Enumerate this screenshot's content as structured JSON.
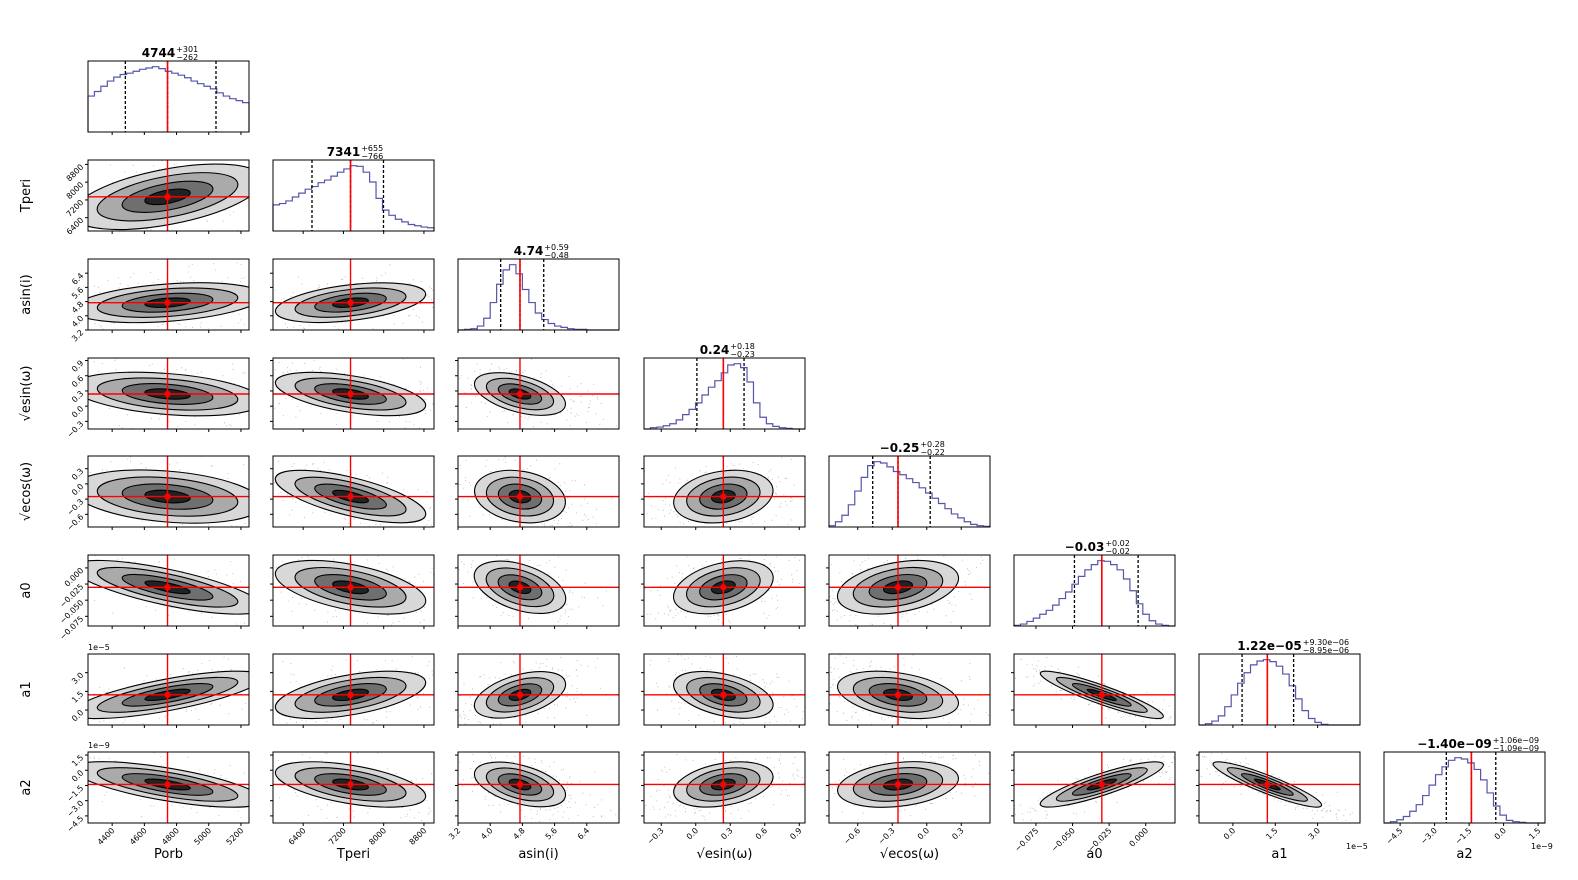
{
  "chart_data": {
    "type": "corner",
    "parameters": [
      {
        "key": "Porb",
        "axis_label": "P_orb",
        "display_label": "Porb",
        "sub": "orb",
        "base": "P",
        "median": 4744,
        "minus": 262,
        "plus": 301,
        "title_main": "4744",
        "title_plus": "+301",
        "title_minus": "−262",
        "range": [
          4250,
          5250
        ],
        "ticks": [
          4400,
          4600,
          4800,
          5000,
          5200
        ],
        "tick_labels": [
          "4400",
          "4600",
          "4800",
          "5000",
          "5200"
        ],
        "hist": [
          0.55,
          0.62,
          0.7,
          0.78,
          0.84,
          0.88,
          0.9,
          0.93,
          0.96,
          0.98,
          1.0,
          0.97,
          0.93,
          0.9,
          0.87,
          0.83,
          0.78,
          0.74,
          0.7,
          0.66,
          0.6,
          0.55,
          0.51,
          0.48,
          0.45
        ],
        "q16": 4482,
        "q84": 5045,
        "offset": ""
      },
      {
        "key": "Tperi",
        "axis_label": "T_peri",
        "display_label": "Tperi",
        "sub": "peri",
        "base": "T",
        "median": 7341,
        "minus": 766,
        "plus": 655,
        "title_main": "7341",
        "title_plus": "+655",
        "title_minus": "−766",
        "range": [
          5800,
          9000
        ],
        "ticks": [
          6400,
          7200,
          8000,
          8800
        ],
        "tick_labels": [
          "6400",
          "7200",
          "8000",
          "8800"
        ],
        "hist": [
          0.4,
          0.42,
          0.46,
          0.52,
          0.58,
          0.64,
          0.68,
          0.74,
          0.78,
          0.84,
          0.9,
          0.95,
          1.0,
          0.99,
          0.9,
          0.75,
          0.5,
          0.32,
          0.24,
          0.18,
          0.14,
          0.1,
          0.08,
          0.06,
          0.05
        ],
        "q16": 6575,
        "q84": 7996,
        "offset": ""
      },
      {
        "key": "asini",
        "axis_label": "a sin(i)",
        "display_label": "asin(i)",
        "median": 4.74,
        "minus": 0.48,
        "plus": 0.59,
        "title_main": "4.74",
        "title_plus": "+0.59",
        "title_minus": "−0.48",
        "range": [
          3.2,
          7.2
        ],
        "ticks": [
          3.2,
          4.0,
          4.8,
          5.6,
          6.4
        ],
        "tick_labels": [
          "3.2",
          "4.0",
          "4.8",
          "5.6",
          "6.4"
        ],
        "hist": [
          0.0,
          0.01,
          0.02,
          0.06,
          0.18,
          0.42,
          0.7,
          0.92,
          1.0,
          0.86,
          0.62,
          0.42,
          0.26,
          0.16,
          0.1,
          0.06,
          0.04,
          0.02,
          0.01,
          0.01,
          0.0,
          0.0,
          0.0,
          0.0,
          0.0
        ],
        "q16": 4.26,
        "q84": 5.33,
        "offset": ""
      },
      {
        "key": "esinw",
        "axis_label": "√e sin(ω)",
        "display_label": "√esin(ω)",
        "median": 0.24,
        "minus": 0.23,
        "plus": 0.18,
        "title_main": "0.24",
        "title_plus": "+0.18",
        "title_minus": "−0.23",
        "range": [
          -0.45,
          0.95
        ],
        "ticks": [
          -0.3,
          0.0,
          0.3,
          0.6,
          0.9
        ],
        "tick_labels": [
          "−0.3",
          "0.0",
          "0.3",
          "0.6",
          "0.9"
        ],
        "hist": [
          0.0,
          0.02,
          0.03,
          0.05,
          0.08,
          0.14,
          0.22,
          0.3,
          0.4,
          0.52,
          0.64,
          0.74,
          0.86,
          0.98,
          1.0,
          0.94,
          0.72,
          0.4,
          0.18,
          0.08,
          0.04,
          0.02,
          0.01,
          0.0,
          0.0
        ],
        "q16": 0.01,
        "q84": 0.42,
        "offset": ""
      },
      {
        "key": "ecosw",
        "axis_label": "√e cos(ω)",
        "display_label": "√ecos(ω)",
        "median": -0.25,
        "minus": 0.22,
        "plus": 0.28,
        "title_main": "−0.25",
        "title_plus": "+0.28",
        "title_minus": "−0.22",
        "range": [
          -0.85,
          0.55
        ],
        "ticks": [
          -0.6,
          -0.3,
          0.0,
          0.3
        ],
        "tick_labels": [
          "−0.6",
          "−0.3",
          "0.0",
          "0.3"
        ],
        "hist": [
          0.02,
          0.08,
          0.18,
          0.34,
          0.55,
          0.76,
          0.94,
          1.0,
          0.98,
          0.92,
          0.85,
          0.8,
          0.74,
          0.68,
          0.6,
          0.52,
          0.44,
          0.36,
          0.28,
          0.2,
          0.14,
          0.08,
          0.04,
          0.02,
          0.01
        ],
        "q16": -0.47,
        "q84": 0.03,
        "offset": ""
      },
      {
        "key": "a0",
        "axis_label": "a_0",
        "display_label": "a0",
        "sub": "0",
        "base": "a",
        "median": -0.03,
        "minus": 0.02,
        "plus": 0.02,
        "title_main": "−0.03",
        "title_plus": "+0.02",
        "title_minus": "−0.02",
        "range": [
          -0.09,
          0.02
        ],
        "ticks": [
          -0.075,
          -0.05,
          -0.025,
          0.0
        ],
        "tick_labels": [
          "−0.075",
          "−0.050",
          "−0.025",
          "0.000"
        ],
        "hist": [
          0.01,
          0.03,
          0.07,
          0.12,
          0.18,
          0.24,
          0.32,
          0.42,
          0.52,
          0.64,
          0.76,
          0.86,
          0.94,
          1.0,
          0.99,
          0.94,
          0.86,
          0.72,
          0.54,
          0.34,
          0.18,
          0.08,
          0.03,
          0.01,
          0.0
        ],
        "q16": -0.0487,
        "q84": -0.0052,
        "offset": ""
      },
      {
        "key": "a1",
        "axis_label": "a_1",
        "display_label": "a1",
        "sub": "1",
        "base": "a",
        "median": 1.22,
        "minus": 0.895,
        "plus": 0.93,
        "title_main": "1.22e−05",
        "title_plus": "+9.30e−06",
        "title_minus": "−8.95e−06",
        "range": [
          -1.2,
          4.5
        ],
        "ticks": [
          0.0,
          1.5,
          3.0
        ],
        "tick_labels": [
          "0.0",
          "1.5",
          "3.0"
        ],
        "hist": [
          0.0,
          0.02,
          0.06,
          0.14,
          0.28,
          0.46,
          0.64,
          0.8,
          0.92,
          0.98,
          1.0,
          0.97,
          0.9,
          0.78,
          0.6,
          0.4,
          0.22,
          0.1,
          0.04,
          0.01,
          0.0,
          0.0,
          0.0,
          0.0,
          0.0
        ],
        "q16": 0.325,
        "q84": 2.15,
        "offset": "1e−5"
      },
      {
        "key": "a2",
        "axis_label": "a_2",
        "display_label": "a2",
        "sub": "2",
        "base": "a",
        "median": -1.4,
        "minus": 1.09,
        "plus": 1.06,
        "title_main": "−1.40e−09",
        "title_plus": "+1.06e−09",
        "title_minus": "−1.09e−09",
        "range": [
          -5.2,
          1.8
        ],
        "ticks": [
          -4.5,
          -3.0,
          -1.5,
          0.0,
          1.5
        ],
        "tick_labels": [
          "−4.5",
          "−3.0",
          "−1.5",
          "0.0",
          "1.5"
        ],
        "hist": [
          0.0,
          0.02,
          0.05,
          0.1,
          0.18,
          0.28,
          0.42,
          0.58,
          0.74,
          0.86,
          0.96,
          1.0,
          0.98,
          0.92,
          0.82,
          0.66,
          0.46,
          0.26,
          0.12,
          0.04,
          0.02,
          0.01,
          0.0,
          0.0,
          0.0
        ],
        "q16": -2.49,
        "q84": -0.34,
        "offset": "1e−9"
      }
    ],
    "y_offset_labels": {
      "a1": "1e−5",
      "a2": "1e−9"
    },
    "correlations": [
      [
        0,
        0.55,
        0.35,
        -0.35,
        -0.3,
        -0.75,
        0.75,
        -0.7
      ],
      [
        0.55,
        0,
        0.45,
        -0.55,
        -0.7,
        -0.55,
        0.55,
        -0.55
      ],
      [
        0.35,
        0.45,
        0,
        -0.55,
        -0.3,
        -0.55,
        0.55,
        -0.55
      ],
      [
        -0.35,
        -0.55,
        -0.55,
        0,
        0.3,
        0.45,
        -0.5,
        0.4
      ],
      [
        -0.3,
        -0.7,
        -0.3,
        0.3,
        0,
        0.4,
        -0.4,
        0.3
      ],
      [
        -0.75,
        -0.55,
        -0.55,
        0.45,
        0.4,
        0,
        -0.92,
        0.88
      ],
      [
        0.75,
        0.55,
        0.55,
        -0.5,
        -0.4,
        -0.92,
        0,
        -0.92
      ],
      [
        -0.7,
        -0.55,
        -0.55,
        0.4,
        0.3,
        0.88,
        -0.92,
        0
      ]
    ],
    "truth_color": "#ff0000",
    "hist_color": "#5555aa",
    "quantile_line_color": "#000000"
  }
}
